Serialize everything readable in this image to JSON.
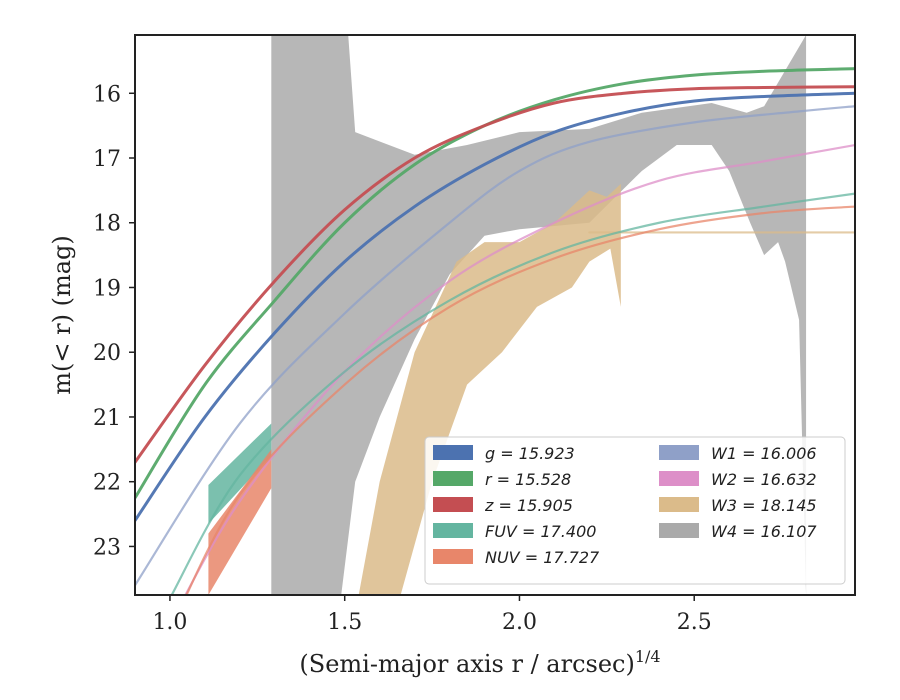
{
  "chart_data": {
    "type": "line",
    "xlabel": "(Semi-major axis r / arcsec)",
    "xlabel_sup": "1/4",
    "ylabel": "m(< r) (mag)",
    "xlim": [
      0.9,
      2.96
    ],
    "ylim": [
      23.75,
      15.1
    ],
    "y_inverted": true,
    "x_ticks": [
      1.0,
      1.5,
      2.0,
      2.5
    ],
    "x_tick_labels": [
      "1.0",
      "1.5",
      "2.0",
      "2.5"
    ],
    "y_ticks": [
      16,
      17,
      18,
      19,
      20,
      21,
      22,
      23
    ],
    "y_tick_labels": [
      "16",
      "17",
      "18",
      "19",
      "20",
      "21",
      "22",
      "23"
    ],
    "grid": false,
    "legend_position": "lower-right",
    "colors": {
      "g": "#4c72b0",
      "r": "#55a868",
      "z": "#c44e52",
      "FUV": "#64b5a0",
      "NUV": "#e8866a",
      "W1": "#8fa0c8",
      "W2": "#dd8fc8",
      "W3": "#dbbb8a",
      "W4": "#aaaaaa"
    },
    "legend": [
      {
        "key": "g",
        "label": "g = 15.923",
        "color": "#4c72b0"
      },
      {
        "key": "r",
        "label": "r = 15.528",
        "color": "#55a868"
      },
      {
        "key": "z",
        "label": "z = 15.905",
        "color": "#c44e52"
      },
      {
        "key": "FUV",
        "label": "FUV = 17.400",
        "color": "#64b5a0"
      },
      {
        "key": "NUV",
        "label": "NUV = 17.727",
        "color": "#e8866a"
      },
      {
        "key": "W1",
        "label": "W1 = 16.006",
        "color": "#8fa0c8"
      },
      {
        "key": "W2",
        "label": "W2 = 16.632",
        "color": "#dd8fc8"
      },
      {
        "key": "W3",
        "label": "W3 = 18.145",
        "color": "#dbbb8a"
      },
      {
        "key": "W4",
        "label": "W4 = 16.107",
        "color": "#aaaaaa"
      }
    ],
    "bands": [
      {
        "name": "W4",
        "color": "#aaaaaa",
        "alpha": 0.85,
        "upper": [
          [
            1.29,
            15.1
          ],
          [
            1.51,
            15.1
          ],
          [
            1.53,
            16.6
          ],
          [
            1.7,
            16.95
          ],
          [
            1.85,
            16.8
          ],
          [
            2.0,
            16.6
          ],
          [
            2.2,
            16.55
          ],
          [
            2.35,
            16.3
          ],
          [
            2.55,
            16.15
          ],
          [
            2.65,
            16.3
          ],
          [
            2.7,
            16.2
          ],
          [
            2.82,
            15.1
          ]
        ],
        "lower": [
          [
            1.29,
            23.75
          ],
          [
            1.49,
            23.75
          ],
          [
            1.53,
            22.0
          ],
          [
            1.6,
            21.0
          ],
          [
            1.7,
            19.8
          ],
          [
            1.8,
            18.8
          ],
          [
            1.9,
            18.2
          ],
          [
            2.0,
            18.1
          ],
          [
            2.2,
            18.0
          ],
          [
            2.35,
            17.2
          ],
          [
            2.45,
            16.8
          ],
          [
            2.55,
            16.8
          ],
          [
            2.6,
            17.2
          ],
          [
            2.66,
            18.0
          ],
          [
            2.7,
            18.5
          ],
          [
            2.74,
            18.3
          ],
          [
            2.76,
            18.6
          ],
          [
            2.8,
            19.5
          ],
          [
            2.82,
            23.75
          ]
        ]
      },
      {
        "name": "W3",
        "color": "#dbbb8a",
        "alpha": 0.85,
        "upper": [
          [
            1.54,
            23.75
          ],
          [
            1.6,
            22.0
          ],
          [
            1.7,
            20.0
          ],
          [
            1.82,
            18.6
          ],
          [
            1.9,
            18.3
          ],
          [
            2.0,
            18.3
          ],
          [
            2.1,
            18.0
          ],
          [
            2.2,
            17.5
          ],
          [
            2.25,
            17.6
          ],
          [
            2.29,
            17.4
          ]
        ],
        "lower": [
          [
            1.54,
            23.75
          ],
          [
            1.66,
            23.75
          ],
          [
            1.75,
            22.0
          ],
          [
            1.85,
            20.5
          ],
          [
            1.95,
            20.0
          ],
          [
            2.05,
            19.3
          ],
          [
            2.15,
            19.0
          ],
          [
            2.2,
            18.6
          ],
          [
            2.26,
            18.4
          ],
          [
            2.29,
            19.3
          ]
        ]
      },
      {
        "name": "FUV",
        "color": "#64b5a0",
        "alpha": 0.85,
        "upper": [
          [
            1.11,
            22.05
          ],
          [
            1.29,
            21.1
          ]
        ],
        "lower": [
          [
            1.11,
            22.65
          ],
          [
            1.29,
            21.6
          ]
        ]
      },
      {
        "name": "NUV",
        "color": "#e8866a",
        "alpha": 0.85,
        "upper": [
          [
            1.11,
            22.8
          ],
          [
            1.29,
            21.5
          ]
        ],
        "lower": [
          [
            1.11,
            23.75
          ],
          [
            1.29,
            22.1
          ]
        ]
      }
    ],
    "series": [
      {
        "name": "W1",
        "color": "#8fa0c8",
        "key": "W1",
        "x": [
          0.9,
          1.2,
          1.5,
          1.8,
          2.0,
          2.2,
          2.5,
          2.8,
          2.96
        ],
        "y": [
          23.6,
          21.1,
          19.4,
          18.0,
          17.2,
          16.75,
          16.45,
          16.28,
          16.2
        ]
      },
      {
        "name": "W2",
        "color": "#dd8fc8",
        "key": "W2",
        "x": [
          1.0,
          1.2,
          1.5,
          1.8,
          2.1,
          2.4,
          2.7,
          2.96
        ],
        "y": [
          24.2,
          22.3,
          20.3,
          18.9,
          18.0,
          17.35,
          17.05,
          16.8
        ]
      },
      {
        "name": "W3",
        "color": "#dbbb8a",
        "key": "W3",
        "x": [
          2.2,
          2.96
        ],
        "y": [
          18.15,
          18.15
        ]
      },
      {
        "name": "FUV",
        "color": "#64b5a0",
        "key": "FUV",
        "x": [
          1.0,
          1.2,
          1.5,
          1.8,
          2.1,
          2.4,
          2.7,
          2.96
        ],
        "y": [
          23.8,
          21.9,
          20.3,
          19.2,
          18.45,
          18.0,
          17.75,
          17.55
        ]
      },
      {
        "name": "NUV",
        "color": "#e8866a",
        "key": "NUV",
        "x": [
          1.0,
          1.2,
          1.5,
          1.8,
          2.1,
          2.4,
          2.7,
          2.96
        ],
        "y": [
          24.3,
          22.2,
          20.5,
          19.3,
          18.55,
          18.1,
          17.85,
          17.75
        ]
      },
      {
        "name": "g",
        "color": "#4c72b0",
        "key": "g",
        "x": [
          0.9,
          1.1,
          1.3,
          1.5,
          1.7,
          1.9,
          2.1,
          2.3,
          2.5,
          2.7,
          2.96
        ],
        "y": [
          22.6,
          21.0,
          19.7,
          18.6,
          17.75,
          17.1,
          16.6,
          16.3,
          16.12,
          16.05,
          16.0
        ]
      },
      {
        "name": "r",
        "color": "#55a868",
        "key": "r",
        "x": [
          0.9,
          1.1,
          1.3,
          1.5,
          1.7,
          1.9,
          2.1,
          2.3,
          2.5,
          2.7,
          2.96
        ],
        "y": [
          22.25,
          20.5,
          19.2,
          18.0,
          17.1,
          16.5,
          16.1,
          15.85,
          15.72,
          15.66,
          15.62
        ]
      },
      {
        "name": "z",
        "color": "#c44e52",
        "key": "z",
        "x": [
          0.9,
          1.1,
          1.3,
          1.5,
          1.7,
          1.9,
          2.1,
          2.3,
          2.5,
          2.7,
          2.96
        ],
        "y": [
          21.7,
          20.2,
          18.9,
          17.8,
          17.0,
          16.5,
          16.15,
          16.0,
          15.93,
          15.91,
          15.9
        ]
      }
    ]
  }
}
